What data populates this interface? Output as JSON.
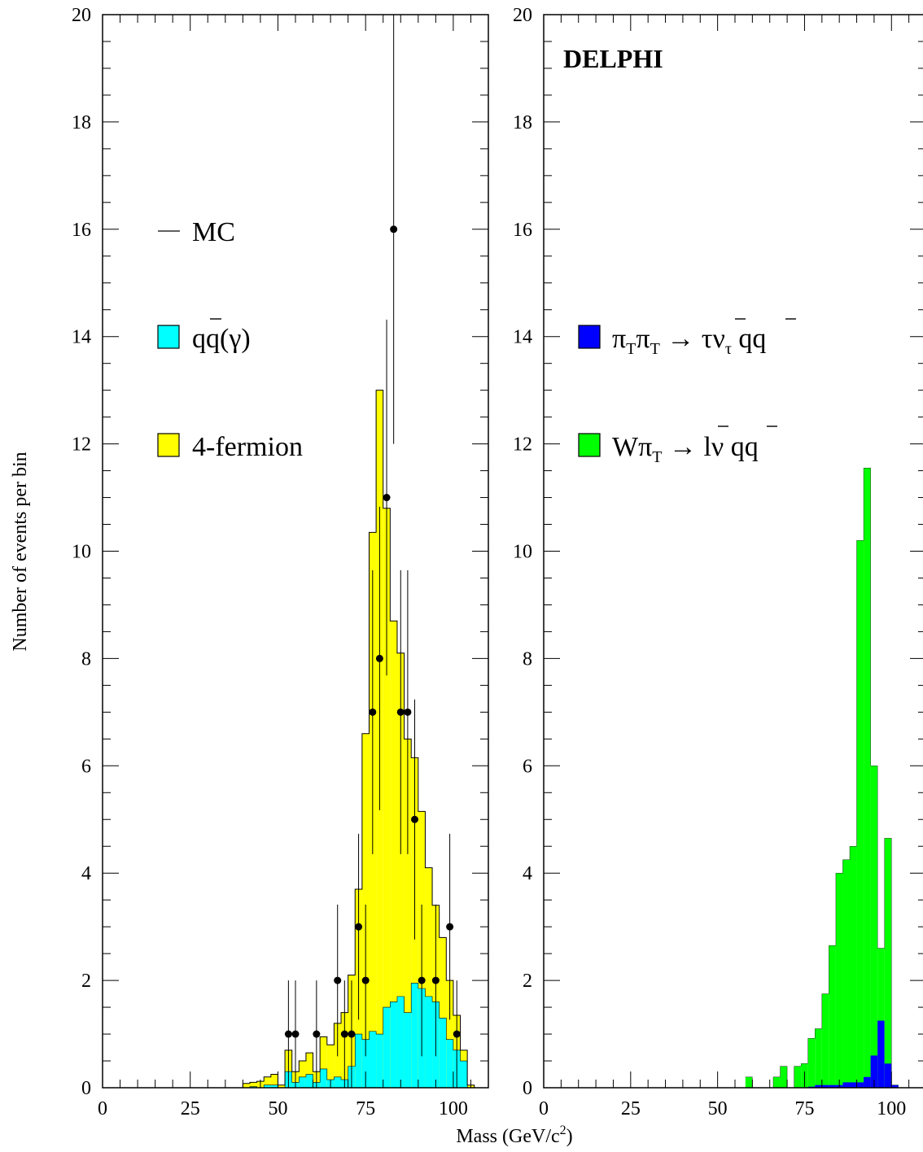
{
  "ylabel": "Number of events per bin",
  "xlabel": "Mass  (GeV/c²)",
  "experiment": "DELPHI",
  "colors": {
    "qq": "#00ffff",
    "four_fermion": "#ffff00",
    "pipi": "#0000ff",
    "wpi": "#00ff00",
    "mc_line": "#000000",
    "data_points": "#000000"
  },
  "chart_data": [
    {
      "type": "bar",
      "panel": "left",
      "xlim": [
        0,
        110
      ],
      "ylim": [
        0,
        20
      ],
      "x_ticks": [
        "0",
        "25",
        "50",
        "75",
        "100"
      ],
      "y_ticks": [
        "0",
        "2",
        "4",
        "6",
        "8",
        "10",
        "12",
        "14",
        "16",
        "18",
        "20"
      ],
      "legend": [
        {
          "key": "mc",
          "label": "MC",
          "marker": "line"
        },
        {
          "key": "qq",
          "label": "qq(γ)",
          "marker": "box"
        },
        {
          "key": "four_fermion",
          "label": "4-fermion",
          "marker": "box"
        }
      ],
      "bin_edges_start": 40,
      "bin_width": 2,
      "series": [
        {
          "name": "qq(γ)",
          "key": "qq",
          "values": [
            0.0,
            0.02,
            0.0,
            0.05,
            0.05,
            0.0,
            0.3,
            0.1,
            0.2,
            0.25,
            0.1,
            0.35,
            0.15,
            0.2,
            0.15,
            0.4,
            1.0,
            0.9,
            1.05,
            1.0,
            1.5,
            1.6,
            1.7,
            1.4,
            1.95,
            1.85,
            1.7,
            1.6,
            1.3,
            0.9,
            0.7,
            0.5,
            0.0,
            0.0
          ]
        },
        {
          "name": "4-fermion",
          "key": "four_fermion",
          "values": [
            0.08,
            0.08,
            0.12,
            0.15,
            0.2,
            0.05,
            0.4,
            0.2,
            0.3,
            0.4,
            0.2,
            0.6,
            0.65,
            1.0,
            1.25,
            1.7,
            2.7,
            5.7,
            9.3,
            12.0,
            9.3,
            7.1,
            6.4,
            5.1,
            4.2,
            3.3,
            2.4,
            1.8,
            1.5,
            1.1,
            0.65,
            0.2,
            0.05,
            0.0
          ]
        }
      ],
      "data_points": {
        "x": [
          53,
          55,
          61,
          67,
          69,
          71,
          73,
          75,
          77,
          79,
          81,
          83,
          85,
          87,
          89,
          91,
          95,
          99,
          101
        ],
        "y": [
          1,
          1,
          1,
          2,
          1,
          1,
          3,
          2,
          7,
          8,
          11,
          16,
          7,
          7,
          5,
          2,
          2,
          3,
          1
        ]
      }
    },
    {
      "type": "bar",
      "panel": "right",
      "xlim": [
        0,
        110
      ],
      "ylim": [
        0,
        20
      ],
      "x_ticks": [
        "0",
        "25",
        "50",
        "75",
        "100"
      ],
      "y_ticks": [
        "0",
        "2",
        "4",
        "6",
        "8",
        "10",
        "12",
        "14",
        "16",
        "18",
        "20"
      ],
      "legend": [
        {
          "key": "pipi",
          "label": "πTπT → τντ qq",
          "marker": "box"
        },
        {
          "key": "wpi",
          "label": "WπT → lν qq",
          "marker": "box"
        }
      ],
      "bin_edges_start": 58,
      "bin_width": 2,
      "series": [
        {
          "name": "πTπT → τντ qq",
          "key": "pipi",
          "values": [
            0.0,
            0.0,
            0.0,
            0.0,
            0.0,
            0.0,
            0.0,
            0.0,
            0.0,
            0.02,
            0.05,
            0.05,
            0.05,
            0.05,
            0.1,
            0.1,
            0.1,
            0.2,
            0.6,
            1.25,
            0.45,
            0.05
          ]
        },
        {
          "name": "WπT → lν qq",
          "key": "wpi",
          "values": [
            0.2,
            0.0,
            0.0,
            0.0,
            0.2,
            0.4,
            0.0,
            0.4,
            0.45,
            0.9,
            1.05,
            1.7,
            2.6,
            3.95,
            4.15,
            4.4,
            10.1,
            11.35,
            5.4,
            1.35,
            4.2,
            0.0
          ]
        }
      ]
    }
  ]
}
